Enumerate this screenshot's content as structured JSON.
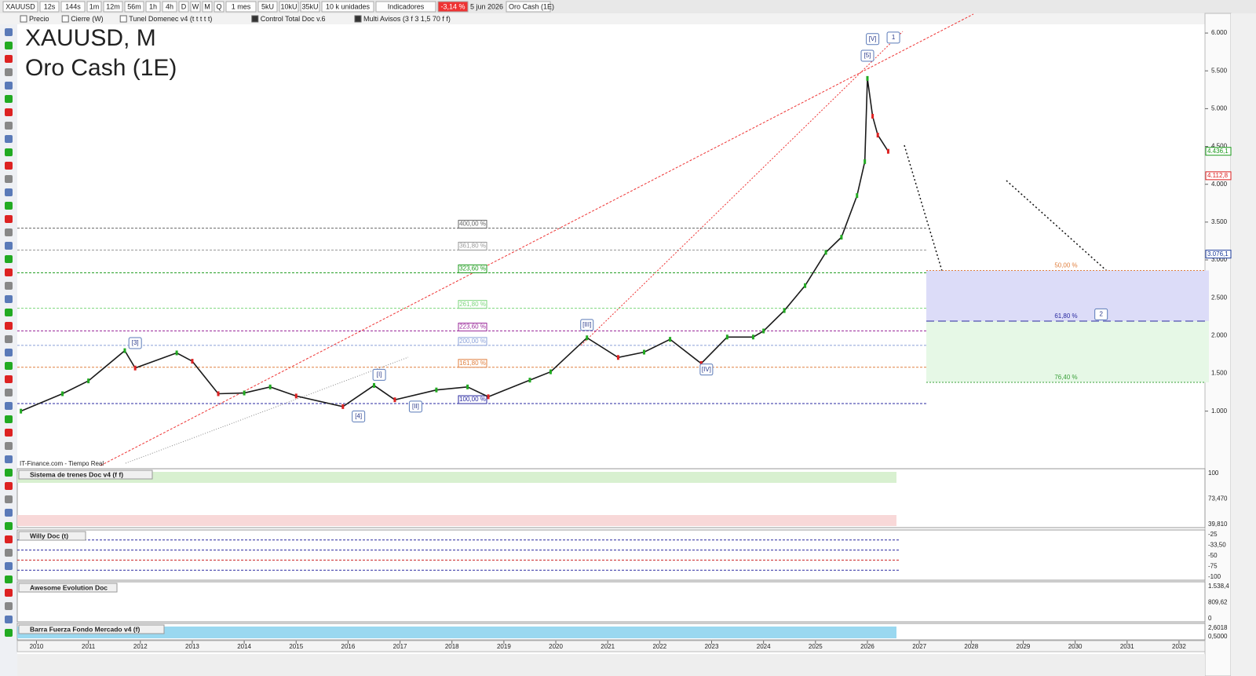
{
  "toolbar": {
    "symbol": "XAUUSD",
    "intervals": [
      "12s",
      "144s",
      "1m",
      "12m",
      "56m",
      "1h",
      "4h",
      "D",
      "W",
      "M",
      "Q"
    ],
    "period": "1 mes",
    "units": [
      "5kU",
      "10kU",
      "35kU"
    ],
    "unit_select": "10 k unidades",
    "indicators": "Indicadores",
    "change": "-3,14 %",
    "date": "5 jun 2026",
    "instrument": "Oro Cash (1E)"
  },
  "legend": [
    "Precio",
    "Cierre (W)",
    "Tunel Domenec v4 (t t t t t)",
    "Control Total Doc v.6",
    "Multi Avisos (3 f 3 1,5 70 f f)"
  ],
  "title": {
    "line1": "XAUUSD, M",
    "line2": "Oro Cash (1E)"
  },
  "source": "IT-Finance.com - Tiempo Real",
  "price_axis": {
    "ylim": [
      280,
      6250
    ],
    "ticks": [
      {
        "value": 1000,
        "label": "1.000"
      },
      {
        "value": 1500,
        "label": "1.500"
      },
      {
        "value": 2000,
        "label": "2.000"
      },
      {
        "value": 2500,
        "label": "2.500"
      },
      {
        "value": 3000,
        "label": "3.000"
      },
      {
        "value": 3500,
        "label": "3.500"
      },
      {
        "value": 4000,
        "label": "4.000"
      },
      {
        "value": 4500,
        "label": "4.500"
      },
      {
        "value": 5000,
        "label": "5.000"
      },
      {
        "value": 5500,
        "label": "5.500"
      },
      {
        "value": 6000,
        "label": "6.000"
      }
    ],
    "tags": [
      {
        "value": 4436.1,
        "label": "4.436,1",
        "color": "#1a9a1a"
      },
      {
        "value": 4112.8,
        "label": "4.112,8",
        "color": "#d22"
      },
      {
        "value": 3076.1,
        "label": "3.076,1",
        "color": "#1a3a9a"
      }
    ]
  },
  "time_axis": {
    "xlim": [
      2009.63,
      2032.5
    ],
    "ticks": [
      2010,
      2011,
      2012,
      2013,
      2014,
      2015,
      2016,
      2017,
      2018,
      2019,
      2020,
      2021,
      2022,
      2023,
      2024,
      2025,
      2026,
      2027,
      2028,
      2029,
      2030,
      2031,
      2032
    ]
  },
  "price": {
    "x": [
      2009.7,
      2010.5,
      2011.0,
      2011.7,
      2011.9,
      2012.7,
      2013.0,
      2013.5,
      2014.0,
      2014.5,
      2015.0,
      2015.9,
      2016.5,
      2016.9,
      2017.7,
      2018.3,
      2018.7,
      2019.5,
      2019.9,
      2020.6,
      2021.2,
      2021.7,
      2022.2,
      2022.8,
      2023.3,
      2023.8,
      2024.0,
      2024.4,
      2024.8,
      2025.2,
      2025.5,
      2025.8,
      2025.95,
      2026.0,
      2026.1,
      2026.2,
      2026.4
    ],
    "values": [
      1000,
      1230,
      1400,
      1800,
      1570,
      1770,
      1660,
      1230,
      1240,
      1320,
      1200,
      1060,
      1340,
      1150,
      1280,
      1320,
      1190,
      1410,
      1520,
      1970,
      1710,
      1780,
      1950,
      1630,
      1980,
      1980,
      2060,
      2330,
      2660,
      3100,
      3300,
      3850,
      4300,
      5400,
      4900,
      4650,
      4436
    ]
  },
  "fib_levels": [
    {
      "label": "400,00 %",
      "value": 3420,
      "color": "#666"
    },
    {
      "label": "361,80 %",
      "value": 3130,
      "color": "#999"
    },
    {
      "label": "323,60 %",
      "value": 2830,
      "color": "#1a9a1a"
    },
    {
      "label": "261,80 %",
      "value": 2360,
      "color": "#7cd67c"
    },
    {
      "label": "223,60 %",
      "value": 2060,
      "color": "#9a2a9a"
    },
    {
      "label": "200,00 %",
      "value": 1870,
      "color": "#8aa0d8"
    },
    {
      "label": "161,80 %",
      "value": 1580,
      "color": "#e08040"
    },
    {
      "label": "100,00 %",
      "value": 1100,
      "color": "#2a2aa0"
    }
  ],
  "target_levels": [
    {
      "label": "50,00 %",
      "value": 2860,
      "color": "#e08040"
    },
    {
      "label": "61,80 %",
      "value": 2190,
      "color": "#2a2aa0"
    },
    {
      "label": "76,40 %",
      "value": 1380,
      "color": "#3aa03a"
    }
  ],
  "waves": [
    {
      "label": "[3]",
      "t": 2011.9,
      "v": 1900
    },
    {
      "label": "[I]",
      "t": 2016.6,
      "v": 1480
    },
    {
      "label": "[4]",
      "t": 2016.2,
      "v": 930
    },
    {
      "label": "[II]",
      "t": 2017.3,
      "v": 1060
    },
    {
      "label": "[III]",
      "t": 2020.6,
      "v": 2140
    },
    {
      "label": "[IV]",
      "t": 2022.9,
      "v": 1550
    },
    {
      "label": "[5]",
      "t": 2026.0,
      "v": 5700
    },
    {
      "label": "[V]",
      "t": 2026.1,
      "v": 5920
    },
    {
      "label": "1",
      "t": 2026.5,
      "v": 5940
    },
    {
      "label": "2",
      "t": 2030.5,
      "v": 2280
    }
  ],
  "panels": [
    {
      "title": "Sistema de trenes Doc v4 (f f)",
      "labels": [
        "100",
        "73,470",
        "39,810"
      ]
    },
    {
      "title": "Willy Doc (t)",
      "labels": [
        "-25",
        "-33,50",
        "-50",
        "-75",
        "-100"
      ]
    },
    {
      "title": "Awesome Evolution Doc",
      "labels": [
        "1.538,4",
        "809,62",
        "0"
      ]
    },
    {
      "title": "Barra Fuerza Fondo Mercado v4 (f)",
      "labels": [
        "2,6018",
        "0,5000"
      ]
    }
  ]
}
